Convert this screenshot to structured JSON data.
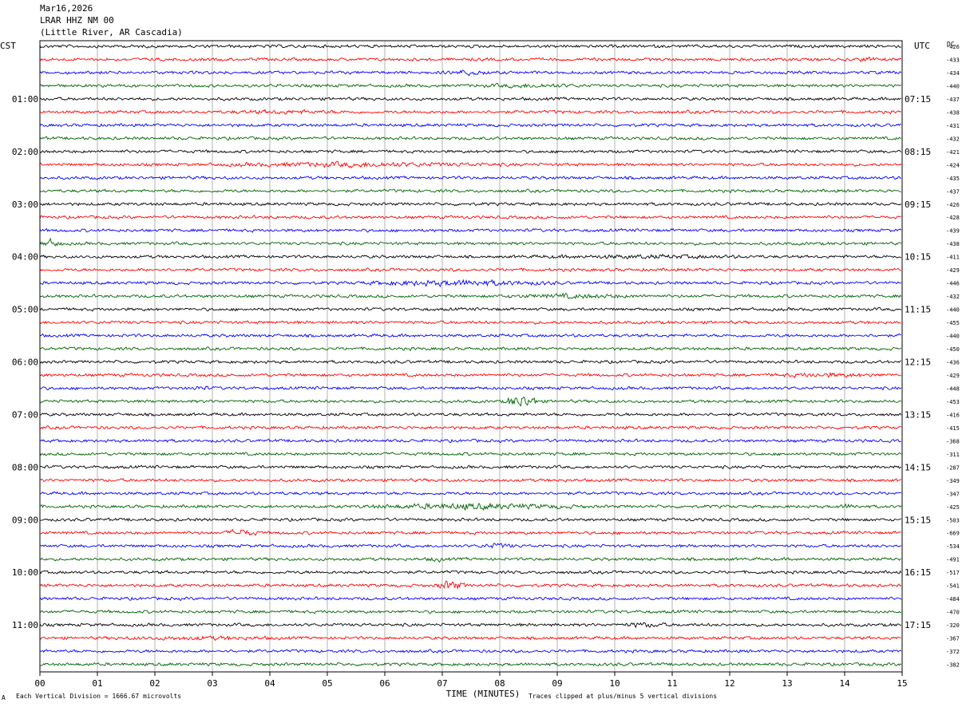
{
  "header": {
    "date": "Mar16,2026",
    "station": "LRAR HHZ NM 00",
    "location": "(Little River, AR Cascadia)"
  },
  "left_axis_label": "CST",
  "right_axis_label": "UTC",
  "dc_label": "DC",
  "footer": {
    "scale_note": "Each Vertical Division = 1666.67 microvolts",
    "clip_note": "Traces clipped at plus/minus 5 vertical divisions",
    "corner_mark": "A"
  },
  "colors": {
    "trace_cycle": [
      "#000000",
      "#ff0000",
      "#0000ff",
      "#006400"
    ],
    "grid": "#808080",
    "frame": "#000000"
  },
  "chart_data": {
    "type": "line",
    "description_kind": "helicorder",
    "xlabel": "TIME (MINUTES)",
    "xlim": [
      0,
      15
    ],
    "x_ticks": [
      "00",
      "01",
      "02",
      "03",
      "04",
      "05",
      "06",
      "07",
      "08",
      "09",
      "10",
      "11",
      "12",
      "13",
      "14",
      "15"
    ],
    "rows": 48,
    "minutes_per_row": 15,
    "left_time_labels": [
      "01:00",
      "02:00",
      "03:00",
      "04:00",
      "05:00",
      "06:00",
      "07:00",
      "08:00",
      "09:00",
      "10:00",
      "11:00"
    ],
    "right_time_labels": [
      "07:15",
      "08:15",
      "09:15",
      "10:15",
      "11:15",
      "12:15",
      "13:15",
      "14:15",
      "15:15",
      "16:15",
      "17:15"
    ],
    "dc_offsets": [
      -426,
      -433,
      -434,
      -440,
      -437,
      -438,
      -431,
      -432,
      -421,
      -424,
      -435,
      -437,
      -426,
      -428,
      -439,
      -438,
      -411,
      -429,
      -446,
      -432,
      -440,
      -455,
      -440,
      -450,
      -436,
      -429,
      -448,
      -453,
      -416,
      -415,
      -368,
      -311,
      -287,
      -349,
      -347,
      -425,
      -503,
      -669,
      -534,
      -491,
      -517,
      -541,
      -484,
      -470,
      -320,
      -367,
      -372,
      -382
    ],
    "events": [
      {
        "row": 1,
        "start_min": 14.1,
        "end_min": 14.6,
        "amp": 2.0
      },
      {
        "row": 2,
        "start_min": 7.0,
        "end_min": 7.9,
        "amp": 2.2
      },
      {
        "row": 3,
        "start_min": 7.1,
        "end_min": 10.0,
        "amp": 1.7
      },
      {
        "row": 5,
        "start_min": 2.5,
        "end_min": 6.0,
        "amp": 1.6
      },
      {
        "row": 9,
        "start_min": 2.6,
        "end_min": 8.5,
        "amp": 2.0
      },
      {
        "row": 15,
        "start_min": 0.0,
        "end_min": 0.4,
        "amp": 3.0
      },
      {
        "row": 16,
        "start_min": 7.5,
        "end_min": 13.5,
        "amp": 1.6
      },
      {
        "row": 18,
        "start_min": 5.5,
        "end_min": 9.0,
        "amp": 2.4
      },
      {
        "row": 19,
        "start_min": 7.5,
        "end_min": 11.0,
        "amp": 1.8
      },
      {
        "row": 25,
        "start_min": 12.3,
        "end_min": 15.0,
        "amp": 1.8
      },
      {
        "row": 26,
        "start_min": 2.5,
        "end_min": 3.0,
        "amp": 1.8
      },
      {
        "row": 27,
        "start_min": 8.1,
        "end_min": 8.7,
        "amp": 4.5
      },
      {
        "row": 35,
        "start_min": 5.5,
        "end_min": 9.5,
        "amp": 2.4
      },
      {
        "row": 35,
        "start_min": 13.8,
        "end_min": 14.3,
        "amp": 2.0
      },
      {
        "row": 37,
        "start_min": 3.2,
        "end_min": 3.8,
        "amp": 2.8
      },
      {
        "row": 38,
        "start_min": 7.6,
        "end_min": 8.3,
        "amp": 2.2
      },
      {
        "row": 39,
        "start_min": 6.7,
        "end_min": 7.1,
        "amp": 2.0
      },
      {
        "row": 41,
        "start_min": 6.9,
        "end_min": 7.4,
        "amp": 3.5
      },
      {
        "row": 44,
        "start_min": 10.0,
        "end_min": 11.0,
        "amp": 2.0
      },
      {
        "row": 45,
        "start_min": 0.5,
        "end_min": 5.0,
        "amp": 1.6
      }
    ]
  }
}
